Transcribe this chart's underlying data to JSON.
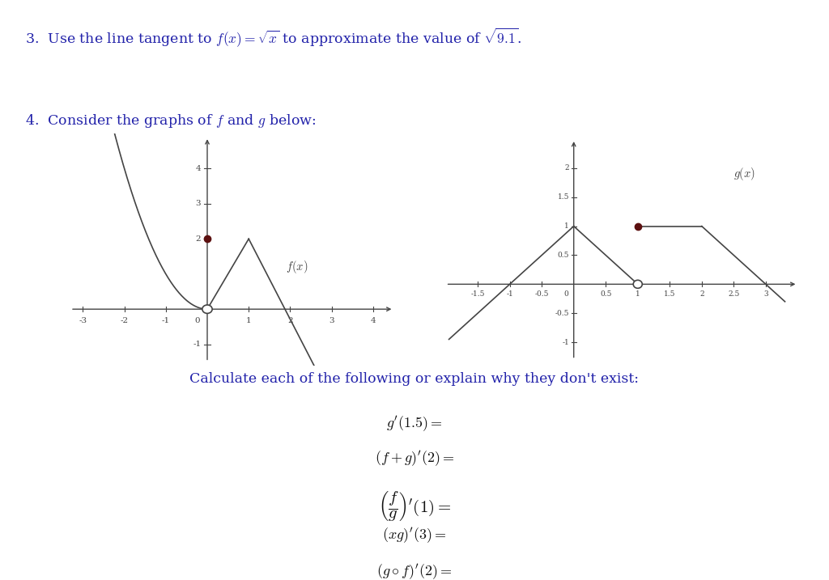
{
  "fig_width": 10.24,
  "fig_height": 7.17,
  "bg_color": "#ffffff",
  "line_color": "#444444",
  "dot_color": "#5c1010",
  "problem3_text": "3.  Use the line tangent to $f(x) = \\sqrt{x}$ to approximate the value of $\\sqrt{9.1}$.",
  "problem4_text": "4.  Consider the graphs of $f$ and $g$ below:",
  "calc_intro": "Calculate each of the following or explain why they don't exist:",
  "bottom_lines": [
    "$g'(1.5) =$",
    "$(f + g)'(2) =$",
    "$\\left(\\dfrac{f}{g}\\right)'(1) =$",
    "$(xg)'(3) =$",
    "$(g \\circ f)'(2) =$"
  ],
  "text_color_blue": "#2222aa",
  "text_color_black": "#111111"
}
